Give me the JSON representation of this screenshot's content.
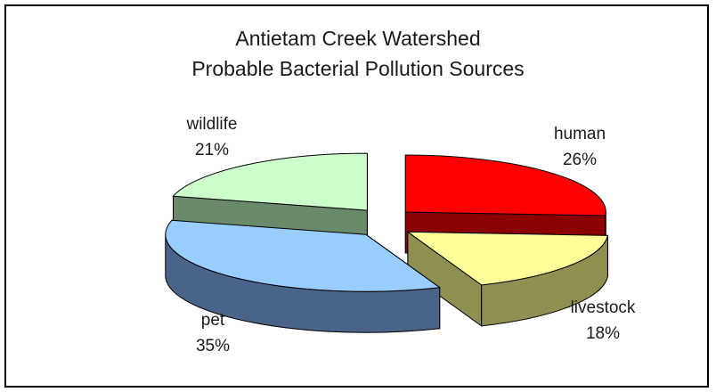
{
  "chart_data": {
    "type": "pie",
    "title_lines": [
      "Antietam Creek Watershed",
      "Probable Bacterial Pollution Sources"
    ],
    "slices": [
      {
        "name": "human",
        "value": 26,
        "label": "26%",
        "color": "#ff0000",
        "side_color": "#8b0000"
      },
      {
        "name": "livestock",
        "value": 18,
        "label": "18%",
        "color": "#ffff99",
        "side_color": "#8f8f52"
      },
      {
        "name": "pet",
        "value": 35,
        "label": "35%",
        "color": "#99ccff",
        "side_color": "#4a6388"
      },
      {
        "name": "wildlife",
        "value": 21,
        "label": "21%",
        "color": "#ccffcc",
        "side_color": "#6b8a6b"
      }
    ],
    "exploded": true,
    "three_d": true,
    "legend": "none"
  }
}
